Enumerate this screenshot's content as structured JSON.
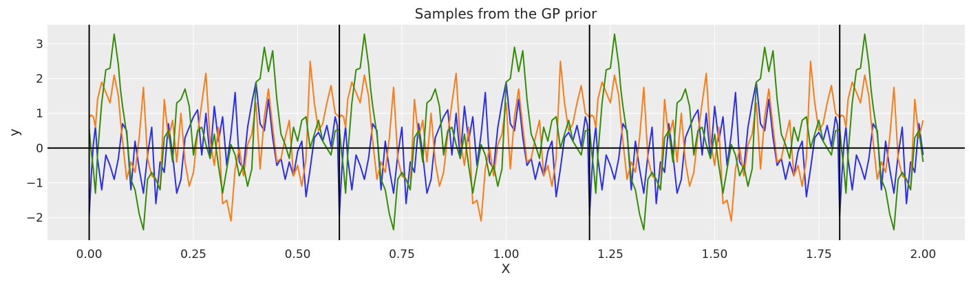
{
  "chart_data": {
    "type": "line",
    "title": "Samples from the GP prior",
    "xlabel": "X",
    "ylabel": "y",
    "xlim": [
      -0.1,
      2.1
    ],
    "ylim": [
      -2.65,
      3.55
    ],
    "x_ticks": [
      0.0,
      0.25,
      0.5,
      0.75,
      1.0,
      1.25,
      1.5,
      1.75,
      2.0
    ],
    "x_tick_labels": [
      "0.00",
      "0.25",
      "0.50",
      "0.75",
      "1.00",
      "1.25",
      "1.50",
      "1.75",
      "2.00"
    ],
    "y_ticks": [
      -2,
      -1,
      0,
      1,
      2,
      3
    ],
    "y_tick_labels": [
      "−2",
      "−1",
      "0",
      "1",
      "2",
      "3"
    ],
    "grid": true,
    "background": "#ececec",
    "vertical_lines": [
      0.0,
      0.6,
      1.2,
      1.8
    ],
    "horizontal_lines": [
      0.0
    ],
    "period": 0.6,
    "series": [
      {
        "color": "#2a2eec",
        "x": [
          0.0,
          0.005,
          0.01,
          0.015,
          0.02,
          0.03,
          0.04,
          0.05,
          0.06,
          0.07,
          0.075,
          0.08,
          0.09,
          0.1,
          0.11,
          0.12,
          0.13,
          0.14,
          0.15,
          0.16,
          0.17,
          0.18,
          0.19,
          0.2,
          0.21,
          0.22,
          0.23,
          0.24,
          0.25,
          0.26,
          0.27,
          0.28,
          0.29,
          0.3,
          0.31,
          0.32,
          0.33,
          0.34,
          0.35,
          0.36,
          0.37,
          0.38,
          0.39,
          0.4,
          0.41,
          0.42,
          0.43,
          0.44,
          0.45,
          0.46,
          0.47,
          0.48,
          0.49,
          0.5,
          0.51,
          0.52,
          0.53,
          0.54,
          0.55,
          0.56,
          0.57,
          0.58,
          0.59,
          0.595
        ],
        "y": [
          -1.95,
          -0.8,
          0.1,
          0.62,
          -0.3,
          -1.2,
          -0.2,
          -0.5,
          -0.9,
          -0.3,
          0.2,
          0.7,
          0.5,
          -1.2,
          0.2,
          -0.6,
          -1.3,
          -0.2,
          0.6,
          -1.6,
          -0.4,
          -0.7,
          0.7,
          -0.2,
          -1.3,
          -0.9,
          0.3,
          0.6,
          0.9,
          1.1,
          -0.2,
          1.0,
          -0.3,
          1.2,
          0.2,
          0.9,
          -0.5,
          0.4,
          1.6,
          -0.4,
          -0.6,
          0.6,
          1.3,
          1.9,
          0.7,
          0.5,
          1.4,
          0.3,
          -0.5,
          -0.3,
          -0.9,
          -0.4,
          -0.8,
          -0.1,
          0.2,
          -1.4,
          -0.6,
          0.3,
          0.45,
          0.2,
          0.65,
          0.05,
          0.9,
          0.65
        ]
      },
      {
        "color": "#fa7c17",
        "x": [
          0.0,
          0.005,
          0.01,
          0.015,
          0.02,
          0.03,
          0.04,
          0.05,
          0.06,
          0.07,
          0.075,
          0.08,
          0.09,
          0.1,
          0.11,
          0.12,
          0.13,
          0.14,
          0.15,
          0.16,
          0.17,
          0.18,
          0.19,
          0.2,
          0.21,
          0.22,
          0.23,
          0.24,
          0.25,
          0.26,
          0.27,
          0.28,
          0.29,
          0.3,
          0.31,
          0.32,
          0.33,
          0.34,
          0.35,
          0.36,
          0.37,
          0.38,
          0.39,
          0.4,
          0.41,
          0.42,
          0.43,
          0.44,
          0.45,
          0.46,
          0.47,
          0.48,
          0.49,
          0.5,
          0.51,
          0.52,
          0.53,
          0.54,
          0.55,
          0.56,
          0.57,
          0.58,
          0.59,
          0.595
        ],
        "y": [
          0.88,
          0.95,
          0.9,
          0.6,
          1.4,
          1.9,
          1.6,
          1.3,
          2.1,
          1.5,
          0.8,
          0.2,
          -0.9,
          -0.4,
          -0.7,
          0.3,
          1.75,
          -0.3,
          -0.8,
          -0.9,
          -1.2,
          1.4,
          0.3,
          0.8,
          -0.4,
          1.0,
          -0.4,
          -1.1,
          -0.7,
          0.4,
          1.3,
          2.15,
          0.2,
          -0.5,
          0.6,
          -1.6,
          -1.5,
          -2.1,
          -0.6,
          0.0,
          -0.8,
          0.1,
          0.4,
          1.3,
          -0.6,
          0.9,
          1.7,
          0.6,
          -0.4,
          -0.3,
          0.3,
          0.8,
          -0.8,
          -0.5,
          -1.1,
          -0.3,
          2.5,
          1.3,
          0.5,
          0.7,
          1.3,
          1.8,
          1.0,
          0.95
        ]
      },
      {
        "color": "#328c06",
        "x": [
          0.0,
          0.005,
          0.01,
          0.015,
          0.02,
          0.03,
          0.04,
          0.05,
          0.06,
          0.07,
          0.075,
          0.08,
          0.09,
          0.1,
          0.11,
          0.12,
          0.13,
          0.14,
          0.15,
          0.16,
          0.17,
          0.18,
          0.19,
          0.2,
          0.21,
          0.22,
          0.23,
          0.24,
          0.25,
          0.26,
          0.27,
          0.28,
          0.29,
          0.3,
          0.31,
          0.32,
          0.33,
          0.34,
          0.35,
          0.36,
          0.37,
          0.38,
          0.39,
          0.4,
          0.41,
          0.42,
          0.43,
          0.44,
          0.45,
          0.46,
          0.47,
          0.48,
          0.49,
          0.5,
          0.51,
          0.52,
          0.53,
          0.54,
          0.55,
          0.56,
          0.57,
          0.58,
          0.59,
          0.595
        ],
        "y": [
          0.55,
          -0.1,
          -0.6,
          -1.3,
          -0.2,
          1.3,
          2.25,
          2.3,
          3.28,
          2.4,
          1.7,
          1.2,
          0.4,
          -0.9,
          -1.2,
          -1.9,
          -2.35,
          -0.9,
          -0.7,
          -0.9,
          -1.2,
          0.3,
          0.5,
          -0.4,
          1.3,
          1.4,
          1.7,
          1.2,
          -0.2,
          0.5,
          0.6,
          0.1,
          -0.3,
          0.4,
          -0.5,
          -1.3,
          -0.6,
          0.1,
          -0.2,
          -0.8,
          -0.5,
          -1.1,
          -0.6,
          1.9,
          2.0,
          2.9,
          2.2,
          2.8,
          1.4,
          0.4,
          0.1,
          -0.3,
          0.6,
          0.2,
          0.8,
          0.9,
          0.0,
          0.4,
          0.8,
          0.2,
          0.0,
          -0.2,
          0.5,
          0.5
        ]
      }
    ]
  }
}
